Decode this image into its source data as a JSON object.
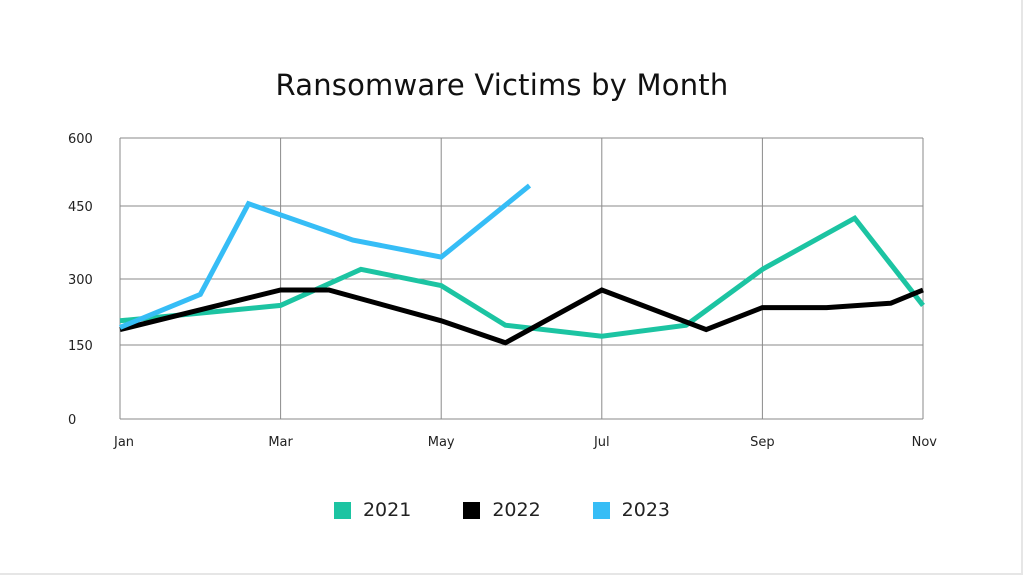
{
  "chart_data": {
    "type": "line",
    "title": "Ransomware Victims by Month",
    "xlabel": "",
    "ylabel": "",
    "x_tick_labels": [
      "Jan",
      "Mar",
      "May",
      "Jul",
      "Sep",
      "Nov"
    ],
    "x_tick_positions": [
      0,
      2,
      4,
      6,
      8,
      10
    ],
    "xlim": [
      0,
      10
    ],
    "y_ticks": [
      0,
      150,
      300,
      450,
      600
    ],
    "ylim": [
      0,
      600
    ],
    "grid": true,
    "legend_position": "bottom",
    "series": [
      {
        "name": "2021",
        "color": "#1cc4a2",
        "points": [
          [
            0,
            205
          ],
          [
            2,
            240
          ],
          [
            3,
            320
          ],
          [
            4,
            285
          ],
          [
            4.8,
            195
          ],
          [
            6,
            170
          ],
          [
            7.05,
            195
          ],
          [
            8,
            320
          ],
          [
            9.15,
            425
          ],
          [
            10,
            240
          ]
        ]
      },
      {
        "name": "2022",
        "color": "#000000",
        "points": [
          [
            0,
            185
          ],
          [
            2,
            275
          ],
          [
            2.6,
            275
          ],
          [
            4,
            205
          ],
          [
            4.8,
            155
          ],
          [
            6,
            275
          ],
          [
            7.3,
            185
          ],
          [
            8,
            235
          ],
          [
            8.8,
            235
          ],
          [
            9.6,
            245
          ],
          [
            10,
            275
          ]
        ]
      },
      {
        "name": "2023",
        "color": "#36bdf6",
        "points": [
          [
            0,
            190
          ],
          [
            1,
            265
          ],
          [
            1.6,
            455
          ],
          [
            2.9,
            380
          ],
          [
            4,
            345
          ],
          [
            5.1,
            495
          ]
        ]
      }
    ]
  },
  "legend": {
    "items": [
      {
        "label": "2021",
        "color": "#1cc4a2"
      },
      {
        "label": "2022",
        "color": "#000000"
      },
      {
        "label": "2023",
        "color": "#36bdf6"
      }
    ]
  }
}
